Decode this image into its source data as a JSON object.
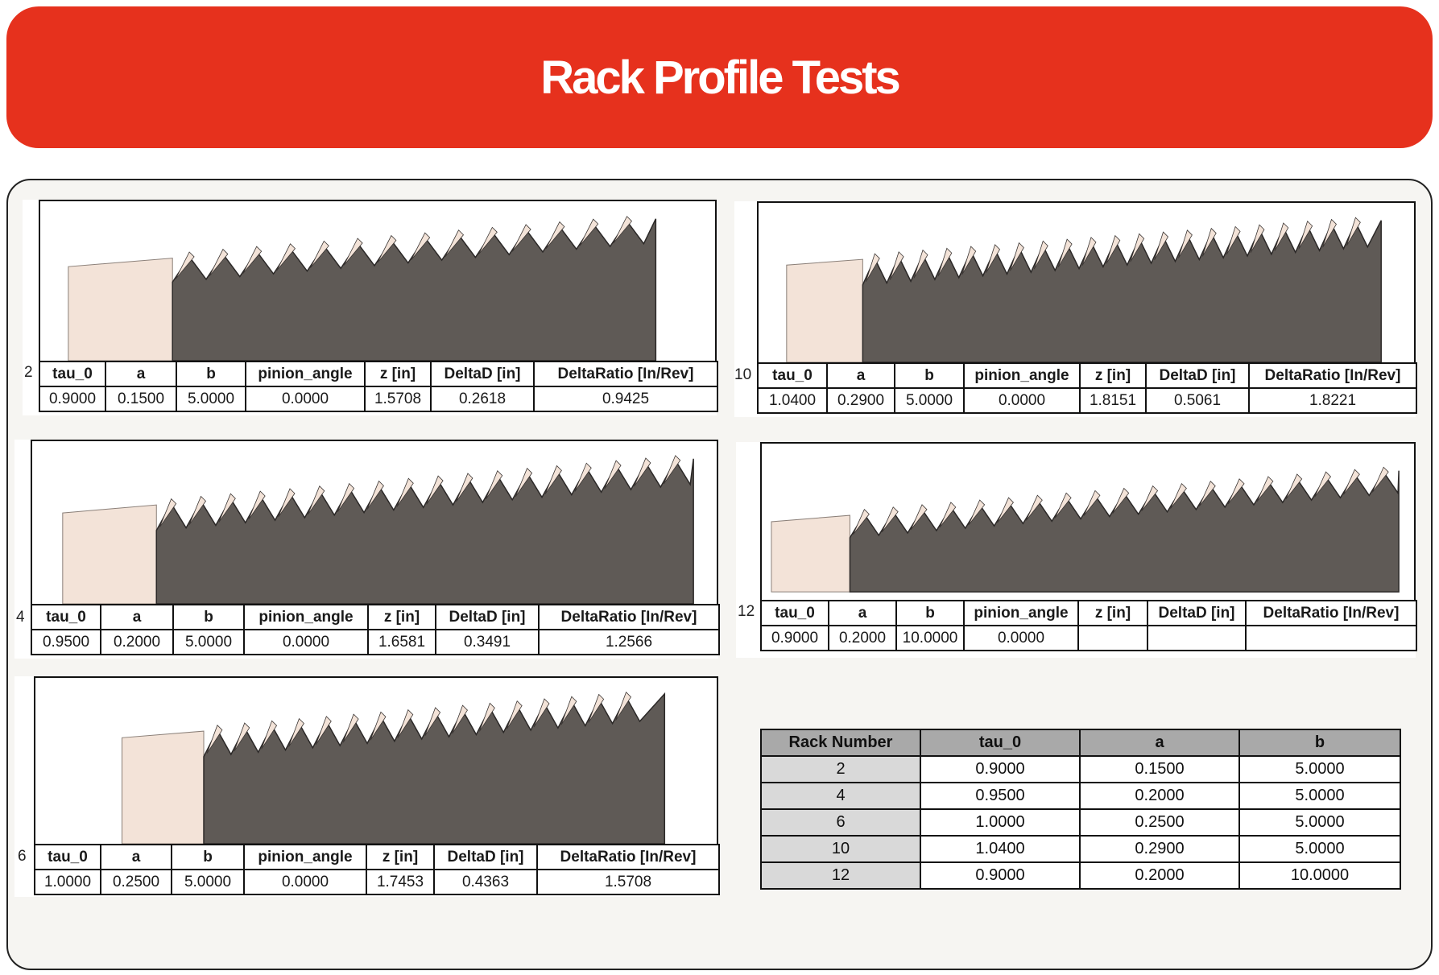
{
  "header": {
    "title": "Rack Profile Tests"
  },
  "param_columns": [
    "tau_0",
    "a",
    "b",
    "pinion_angle",
    "z [in]",
    "DeltaD [in]",
    "DeltaRatio [In/Rev]"
  ],
  "tests": [
    {
      "id": "2",
      "values": [
        "0.9000",
        "0.1500",
        "5.0000",
        "0.0000",
        "1.5708",
        "0.2618",
        "0.9425"
      ]
    },
    {
      "id": "10",
      "values": [
        "1.0400",
        "0.2900",
        "5.0000",
        "0.0000",
        "1.8151",
        "0.5061",
        "1.8221"
      ]
    },
    {
      "id": "4",
      "values": [
        "0.9500",
        "0.2000",
        "5.0000",
        "0.0000",
        "1.6581",
        "0.3491",
        "1.2566"
      ]
    },
    {
      "id": "12",
      "values": [
        "0.9000",
        "0.2000",
        "10.0000",
        "0.0000",
        "",
        "",
        ""
      ]
    },
    {
      "id": "6",
      "values": [
        "1.0000",
        "0.2500",
        "5.0000",
        "0.0000",
        "1.7453",
        "0.4363",
        "1.5708"
      ]
    }
  ],
  "summary": {
    "headers": [
      "Rack Number",
      "tau_0",
      "a",
      "b"
    ],
    "rows": [
      [
        "2",
        "0.9000",
        "0.1500",
        "5.0000"
      ],
      [
        "4",
        "0.9500",
        "0.2000",
        "5.0000"
      ],
      [
        "6",
        "1.0000",
        "0.2500",
        "5.0000"
      ],
      [
        "10",
        "1.0400",
        "0.2900",
        "5.0000"
      ],
      [
        "12",
        "0.9000",
        "0.2000",
        "10.0000"
      ]
    ]
  },
  "colors": {
    "header": "#e6311d",
    "rack_body": "#5f5a56",
    "rack_light": "#f3e3d8",
    "panel": "#f6f5f2"
  }
}
